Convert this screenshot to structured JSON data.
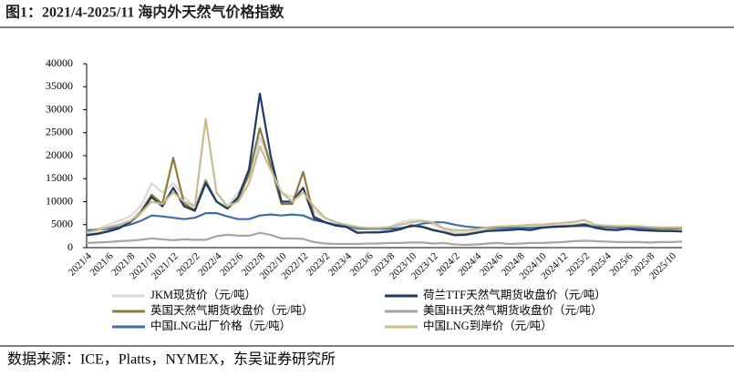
{
  "chart_data": {
    "type": "line",
    "title": "图1：2021/4-2025/11 海内外天然气价格指数",
    "source": "数据来源：ICE，Platts，NYMEX，东吴证券研究所",
    "categories": [
      "2021/4",
      null,
      "2021/6",
      null,
      "2021/8",
      null,
      "2021/10",
      null,
      "2021/12",
      null,
      "2022/2",
      null,
      "2022/4",
      null,
      "2022/6",
      null,
      "2022/8",
      null,
      "2022/10",
      null,
      "2022/12",
      null,
      "2023/2",
      null,
      "2023/4",
      null,
      "2023/6",
      null,
      "2023/8",
      null,
      "2023/10",
      null,
      "2023/12",
      null,
      "2024/2",
      null,
      "2024/4",
      null,
      "2024/6",
      null,
      "2024/8",
      null,
      "2024/10",
      null,
      "2024/12",
      null,
      "2025/2",
      null,
      "2025/4",
      null,
      "2025/6",
      null,
      "2025/8",
      null,
      "2025/10",
      null
    ],
    "ylim": [
      0,
      40000
    ],
    "yticks": [
      0,
      5000,
      10000,
      15000,
      20000,
      25000,
      30000,
      35000,
      40000
    ],
    "grid": false,
    "series": [
      {
        "name": "JKM现货价（元/吨）",
        "color": "#d9d9d9",
        "values": [
          3500,
          4000,
          5000,
          5800,
          6800,
          9000,
          14000,
          12000,
          14000,
          11000,
          9000,
          15000,
          10000,
          9000,
          12000,
          15000,
          24000,
          18000,
          12000,
          11000,
          13000,
          8000,
          6500,
          5500,
          4800,
          3800,
          4000,
          4200,
          4500,
          5500,
          6000,
          6000,
          5000,
          3900,
          3300,
          3300,
          3800,
          4200,
          4300,
          4500,
          4600,
          4600,
          4800,
          5000,
          5000,
          5200,
          5200,
          4800,
          4500,
          4600,
          4700,
          4600,
          4400,
          4300,
          4400,
          4300
        ]
      },
      {
        "name": "荷兰TTF天然气期货收盘价（元/吨）",
        "color": "#1f3864",
        "values": [
          2700,
          3000,
          3500,
          4200,
          5500,
          7500,
          11000,
          9000,
          13000,
          9000,
          8000,
          14000,
          10000,
          8500,
          11000,
          17000,
          33500,
          20000,
          10000,
          10000,
          13000,
          6500,
          5500,
          4800,
          4500,
          3200,
          3300,
          3300,
          3500,
          4000,
          4800,
          4500,
          3800,
          3300,
          2700,
          2800,
          3200,
          3600,
          3700,
          3800,
          4000,
          3800,
          4300,
          4500,
          4600,
          4700,
          5000,
          4300,
          3900,
          3800,
          4100,
          3800,
          3700,
          3600,
          3600,
          3500
        ]
      },
      {
        "name": "英国天然气期货收盘价（元/吨）",
        "color": "#8c7b3e",
        "values": [
          2800,
          3100,
          3600,
          4300,
          5600,
          7800,
          11500,
          9500,
          19500,
          9500,
          8200,
          14500,
          10000,
          8500,
          10500,
          16000,
          26000,
          18000,
          9500,
          9500,
          16500,
          6800,
          5600,
          4900,
          4600,
          3300,
          3300,
          3400,
          3600,
          4100,
          4900,
          4600,
          3900,
          3400,
          2800,
          2900,
          3300,
          3700,
          3800,
          3900,
          4100,
          3900,
          4400,
          4600,
          4700,
          4800,
          5100,
          4400,
          4000,
          3900,
          4200,
          3900,
          3800,
          3700,
          3700,
          3600
        ]
      },
      {
        "name": "美国HH天然气期货收盘价（元/吨）",
        "color": "#a6a6a6",
        "values": [
          1000,
          1100,
          1200,
          1400,
          1500,
          1700,
          2000,
          1800,
          1600,
          1800,
          1700,
          1700,
          2500,
          2800,
          2600,
          2600,
          3200,
          2800,
          2000,
          2000,
          1900,
          1200,
          900,
          800,
          800,
          800,
          900,
          900,
          1000,
          1000,
          1100,
          1100,
          900,
          1000,
          700,
          600,
          700,
          900,
          1000,
          800,
          900,
          1000,
          1000,
          1100,
          1200,
          1400,
          1500,
          1400,
          1300,
          1200,
          1200,
          1200,
          1100,
          1200,
          1200,
          1300
        ]
      },
      {
        "name": "中国LNG出厂价格（元/吨）",
        "color": "#3f6ea6",
        "values": [
          3800,
          3900,
          4100,
          4500,
          5000,
          5800,
          7000,
          6800,
          6500,
          6200,
          6500,
          7500,
          7500,
          6800,
          6200,
          6200,
          7000,
          7200,
          7000,
          7200,
          7000,
          6000,
          5500,
          5000,
          4800,
          4200,
          4100,
          4100,
          4100,
          4300,
          4600,
          5200,
          5500,
          5500,
          5000,
          4600,
          4400,
          4300,
          4300,
          4300,
          4300,
          4300,
          4400,
          4500,
          4600,
          4700,
          4700,
          4600,
          4500,
          4400,
          4300,
          4300,
          4200,
          4200,
          4200,
          4200
        ]
      },
      {
        "name": "中国LNG到岸价（元/吨）",
        "color": "#c8bb8e",
        "values": [
          3300,
          3800,
          4500,
          5000,
          5800,
          7500,
          10000,
          9500,
          12000,
          10000,
          9000,
          28000,
          12000,
          9000,
          10000,
          14000,
          22000,
          17000,
          12000,
          10000,
          12000,
          9000,
          6500,
          5500,
          5000,
          4500,
          4300,
          4300,
          4500,
          5000,
          5500,
          5800,
          5500,
          4200,
          3800,
          3800,
          4000,
          4400,
          4600,
          4700,
          4800,
          5000,
          5000,
          5200,
          5400,
          5600,
          6000,
          5000,
          4800,
          4700,
          4700,
          4700,
          4500,
          4400,
          4400,
          4400
        ]
      }
    ]
  }
}
